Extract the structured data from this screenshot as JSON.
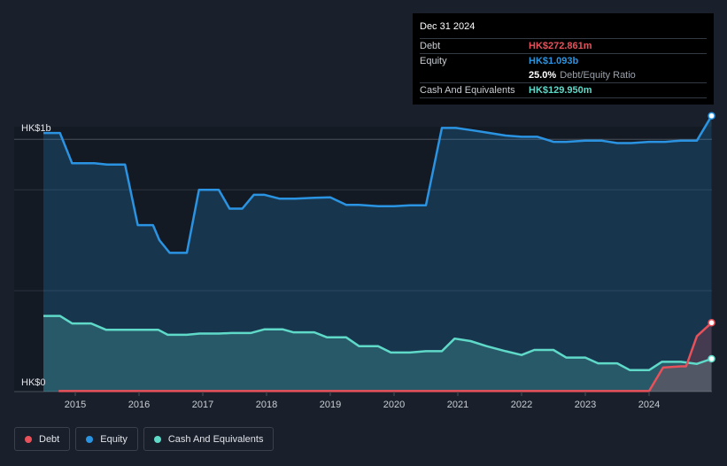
{
  "tooltip": {
    "date": "Dec 31 2024",
    "debt_label": "Debt",
    "debt_value": "HK$272.861m",
    "equity_label": "Equity",
    "equity_value": "HK$1.093b",
    "ratio_value": "25.0%",
    "ratio_label": "Debt/Equity Ratio",
    "cash_label": "Cash And Equivalents",
    "cash_value": "HK$129.950m"
  },
  "legend": [
    {
      "label": "Debt",
      "color": "#e8515a"
    },
    {
      "label": "Equity",
      "color": "#2b94e2"
    },
    {
      "label": "Cash And Equivalents",
      "color": "#5fd9c8"
    }
  ],
  "colors": {
    "debt": "#e8515a",
    "equity": "#2b94e2",
    "cash": "#5fd9c8",
    "background": "#1a202b",
    "plot_bg": "#141a24"
  },
  "chart_data": {
    "type": "area",
    "y_unit": "HK$ millions",
    "ylim": [
      0,
      1050
    ],
    "y_tick_labels": [
      "HK$0",
      "HK$1b"
    ],
    "xlim": [
      2014.5,
      2025.0
    ],
    "x_tick_labels": [
      "2015",
      "2016",
      "2017",
      "2018",
      "2019",
      "2020",
      "2021",
      "2022",
      "2023",
      "2024"
    ],
    "grid": true,
    "legend_position": "bottom-left",
    "series": [
      {
        "name": "Equity",
        "x": [
          2014.5,
          2014.76,
          2014.95,
          2015.3,
          2015.5,
          2015.78,
          2015.98,
          2016.22,
          2016.32,
          2016.48,
          2016.75,
          2016.94,
          2017.25,
          2017.42,
          2017.62,
          2017.8,
          2017.97,
          2018.2,
          2018.45,
          2018.75,
          2019.0,
          2019.25,
          2019.45,
          2019.75,
          2020.0,
          2020.25,
          2020.5,
          2020.75,
          2020.97,
          2021.25,
          2021.5,
          2021.75,
          2022.0,
          2022.25,
          2022.5,
          2022.7,
          2023.0,
          2023.25,
          2023.5,
          2023.72,
          2024.0,
          2024.25,
          2024.5,
          2024.75,
          2024.98
        ],
        "values": [
          1025,
          1025,
          905,
          905,
          900,
          900,
          660,
          660,
          600,
          550,
          550,
          800,
          800,
          725,
          725,
          780,
          780,
          765,
          765,
          768,
          770,
          740,
          740,
          735,
          735,
          738,
          738,
          1045,
          1045,
          1035,
          1025,
          1015,
          1010,
          1010,
          990,
          990,
          995,
          995,
          985,
          985,
          990,
          990,
          995,
          995,
          1093
        ]
      },
      {
        "name": "Cash And Equivalents",
        "x": [
          2014.5,
          2014.76,
          2014.95,
          2015.25,
          2015.48,
          2015.78,
          2016.0,
          2016.3,
          2016.45,
          2016.75,
          2016.95,
          2017.25,
          2017.45,
          2017.75,
          2017.97,
          2018.25,
          2018.42,
          2018.75,
          2018.95,
          2019.25,
          2019.45,
          2019.75,
          2019.95,
          2020.25,
          2020.5,
          2020.75,
          2020.95,
          2021.2,
          2021.45,
          2021.75,
          2022.0,
          2022.2,
          2022.5,
          2022.7,
          2023.0,
          2023.2,
          2023.5,
          2023.7,
          2024.0,
          2024.2,
          2024.5,
          2024.75,
          2024.98
        ],
        "values": [
          300,
          300,
          270,
          270,
          245,
          245,
          245,
          245,
          225,
          225,
          230,
          230,
          232,
          232,
          247,
          247,
          235,
          235,
          215,
          215,
          180,
          180,
          155,
          155,
          160,
          160,
          210,
          200,
          180,
          160,
          145,
          165,
          165,
          135,
          135,
          112,
          112,
          85,
          85,
          118,
          118,
          110,
          130
        ]
      },
      {
        "name": "Debt",
        "x": [
          2014.74,
          2015.0,
          2016.0,
          2017.0,
          2018.0,
          2019.0,
          2020.0,
          2021.0,
          2022.0,
          2023.0,
          2023.5,
          2024.0,
          2024.22,
          2024.5,
          2024.58,
          2024.75,
          2024.98
        ],
        "values": [
          2,
          2,
          2,
          2,
          2,
          2,
          2,
          2,
          2,
          2,
          2,
          2,
          95,
          100,
          100,
          220,
          273
        ]
      }
    ]
  }
}
